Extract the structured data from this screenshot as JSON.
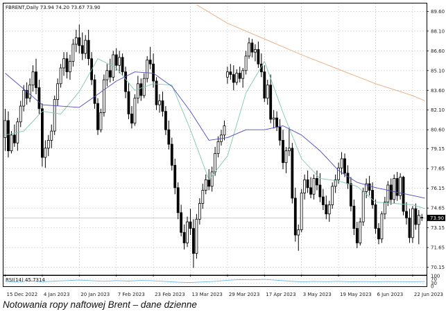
{
  "caption": "Notowania ropy naftowej Brent – dane dzienne",
  "chart_data": {
    "type": "candlestick",
    "symbol_header": "FBRENT,Daily  73.94 74.20 73.67 73.90",
    "last_price_label": "73.90",
    "last_price": 73.9,
    "y_ticks": [
      "89.60",
      "88.10",
      "86.60",
      "85.10",
      "83.60",
      "82.10",
      "80.60",
      "79.15",
      "77.65",
      "76.15",
      "74.65",
      "73.15",
      "71.65",
      "70.15"
    ],
    "ylim": [
      69.6,
      90.2
    ],
    "x_ticks": [
      "15 Dec 2022",
      "4 Jan 2023",
      "20 Jan 2023",
      "7 Feb 2023",
      "23 Feb 2023",
      "13 Mar 2023",
      "29 Mar 2023",
      "17 Apr 2023",
      "3 May 2023",
      "19 May 2023",
      "6 Jun 2023",
      "22 Jun 2023"
    ],
    "x_tick_index": [
      0,
      12,
      24,
      36,
      48,
      60,
      72,
      84,
      96,
      108,
      120,
      132
    ],
    "grid": true,
    "colors": {
      "bull": "#ffffff",
      "bear": "#000000",
      "wick": "#000000",
      "ma_fast": "#7ec9a8",
      "ma_slow": "#4b4bc8",
      "ma_long": "#e8a87c",
      "rsi": "#6fb6e8",
      "grid": "#c8c8c8"
    },
    "ohlc": [
      [
        80.0,
        82.2,
        79.0,
        81.3
      ],
      [
        81.3,
        82.0,
        78.5,
        79.0
      ],
      [
        79.0,
        80.5,
        78.8,
        80.2
      ],
      [
        80.2,
        81.0,
        79.3,
        79.6
      ],
      [
        79.6,
        81.5,
        79.0,
        81.2
      ],
      [
        81.2,
        82.8,
        80.8,
        82.4
      ],
      [
        82.4,
        84.0,
        82.0,
        83.6
      ],
      [
        83.6,
        84.2,
        82.5,
        83.0
      ],
      [
        83.0,
        84.5,
        82.7,
        84.0
      ],
      [
        84.0,
        85.5,
        83.5,
        85.0
      ],
      [
        85.0,
        86.0,
        83.3,
        83.8
      ],
      [
        83.8,
        84.4,
        81.8,
        82.2
      ],
      [
        82.2,
        82.6,
        77.8,
        78.5
      ],
      [
        78.5,
        79.8,
        77.7,
        79.2
      ],
      [
        79.2,
        80.2,
        78.6,
        79.8
      ],
      [
        79.8,
        81.0,
        79.2,
        80.5
      ],
      [
        80.5,
        83.2,
        80.2,
        82.9
      ],
      [
        82.9,
        84.5,
        82.4,
        84.1
      ],
      [
        84.1,
        85.6,
        83.8,
        85.3
      ],
      [
        85.3,
        86.5,
        84.7,
        86.0
      ],
      [
        86.0,
        86.5,
        84.5,
        85.0
      ],
      [
        85.0,
        86.3,
        84.4,
        85.8
      ],
      [
        85.8,
        87.5,
        85.4,
        87.1
      ],
      [
        87.1,
        88.2,
        86.5,
        87.6
      ],
      [
        87.6,
        88.6,
        86.4,
        87.0
      ],
      [
        87.0,
        88.0,
        85.9,
        86.4
      ],
      [
        86.4,
        87.8,
        86.0,
        87.4
      ],
      [
        87.4,
        88.2,
        85.5,
        86.0
      ],
      [
        86.0,
        86.5,
        84.0,
        84.4
      ],
      [
        84.4,
        84.8,
        82.2,
        82.6
      ],
      [
        82.6,
        83.0,
        80.2,
        80.6
      ],
      [
        80.6,
        82.2,
        80.4,
        81.9
      ],
      [
        81.9,
        84.8,
        81.6,
        84.4
      ],
      [
        84.4,
        85.6,
        83.9,
        85.1
      ],
      [
        85.1,
        86.0,
        84.2,
        84.6
      ],
      [
        84.6,
        86.6,
        84.3,
        86.3
      ],
      [
        86.3,
        86.8,
        85.1,
        85.5
      ],
      [
        85.5,
        86.6,
        84.9,
        86.1
      ],
      [
        86.1,
        86.4,
        84.7,
        85.0
      ],
      [
        85.0,
        85.4,
        83.0,
        83.5
      ],
      [
        83.5,
        84.2,
        81.4,
        81.8
      ],
      [
        81.8,
        82.4,
        80.7,
        81.1
      ],
      [
        81.1,
        83.3,
        80.9,
        83.0
      ],
      [
        83.0,
        84.7,
        82.6,
        84.1
      ],
      [
        84.1,
        84.5,
        82.8,
        83.2
      ],
      [
        83.2,
        84.9,
        83.0,
        84.5
      ],
      [
        84.5,
        86.2,
        84.2,
        85.9
      ],
      [
        85.9,
        86.9,
        85.2,
        85.6
      ],
      [
        85.6,
        86.4,
        83.8,
        84.3
      ],
      [
        84.3,
        84.6,
        82.1,
        82.5
      ],
      [
        82.5,
        83.3,
        81.9,
        82.8
      ],
      [
        82.8,
        83.5,
        81.6,
        82.0
      ],
      [
        82.0,
        82.4,
        80.2,
        80.6
      ],
      [
        80.6,
        81.3,
        79.1,
        79.5
      ],
      [
        79.5,
        80.0,
        77.5,
        77.9
      ],
      [
        77.9,
        78.4,
        75.7,
        76.2
      ],
      [
        76.2,
        76.6,
        73.8,
        74.3
      ],
      [
        74.3,
        74.9,
        72.5,
        72.8
      ],
      [
        72.8,
        73.4,
        71.5,
        72.0
      ],
      [
        72.0,
        74.0,
        71.7,
        73.6
      ],
      [
        73.6,
        74.6,
        72.6,
        73.1
      ],
      [
        73.1,
        73.8,
        70.1,
        71.2
      ],
      [
        71.2,
        74.2,
        70.8,
        73.8
      ],
      [
        73.8,
        75.4,
        73.4,
        75.0
      ],
      [
        75.0,
        76.5,
        74.6,
        76.0
      ],
      [
        76.0,
        77.2,
        75.7,
        76.8
      ],
      [
        76.8,
        77.6,
        76.0,
        76.3
      ],
      [
        76.3,
        77.8,
        75.9,
        77.4
      ],
      [
        77.4,
        79.3,
        77.1,
        78.8
      ],
      [
        78.8,
        80.1,
        78.5,
        79.7
      ],
      [
        79.7,
        80.6,
        79.4,
        80.2
      ],
      [
        80.2,
        81.3,
        79.8,
        80.9
      ],
      [
        84.6,
        85.4,
        84.1,
        85.0
      ],
      [
        85.0,
        85.6,
        84.4,
        84.8
      ],
      [
        84.8,
        85.5,
        83.6,
        84.2
      ],
      [
        84.2,
        85.2,
        84.0,
        84.9
      ],
      [
        84.9,
        85.4,
        84.2,
        84.5
      ],
      [
        84.5,
        85.3,
        83.8,
        85.1
      ],
      [
        85.1,
        86.6,
        84.8,
        86.2
      ],
      [
        86.2,
        87.6,
        86.0,
        87.2
      ],
      [
        87.2,
        87.5,
        86.1,
        86.5
      ],
      [
        86.5,
        87.1,
        85.8,
        86.7
      ],
      [
        86.7,
        87.3,
        85.3,
        85.6
      ],
      [
        85.6,
        86.4,
        84.6,
        85.0
      ],
      [
        85.0,
        85.5,
        82.7,
        83.0
      ],
      [
        83.0,
        84.4,
        82.5,
        84.0
      ],
      [
        84.0,
        84.8,
        81.1,
        81.4
      ],
      [
        81.4,
        82.1,
        80.7,
        81.5
      ],
      [
        81.5,
        82.0,
        80.5,
        80.8
      ],
      [
        80.8,
        81.4,
        79.4,
        79.8
      ],
      [
        79.8,
        80.6,
        77.6,
        78.1
      ],
      [
        78.1,
        79.3,
        77.3,
        79.0
      ],
      [
        79.0,
        80.8,
        78.6,
        79.2
      ],
      [
        79.2,
        79.6,
        75.0,
        75.4
      ],
      [
        75.4,
        76.2,
        72.1,
        72.6
      ],
      [
        72.6,
        73.4,
        71.4,
        73.0
      ],
      [
        73.0,
        76.1,
        72.8,
        75.8
      ],
      [
        75.8,
        77.2,
        75.3,
        76.8
      ],
      [
        76.8,
        77.5,
        75.8,
        76.2
      ],
      [
        76.2,
        77.0,
        75.4,
        75.7
      ],
      [
        75.7,
        77.2,
        75.3,
        76.9
      ],
      [
        76.9,
        77.5,
        76.0,
        76.4
      ],
      [
        76.4,
        77.3,
        75.1,
        75.5
      ],
      [
        75.5,
        76.1,
        74.5,
        74.9
      ],
      [
        74.9,
        75.6,
        73.8,
        74.2
      ],
      [
        74.2,
        75.2,
        73.6,
        74.9
      ],
      [
        74.9,
        76.6,
        74.6,
        76.3
      ],
      [
        76.3,
        77.2,
        75.8,
        76.8
      ],
      [
        76.8,
        78.1,
        76.5,
        77.7
      ],
      [
        77.7,
        78.9,
        77.2,
        78.4
      ],
      [
        78.4,
        78.8,
        77.0,
        77.3
      ],
      [
        77.3,
        77.9,
        76.1,
        76.5
      ],
      [
        76.5,
        77.0,
        74.4,
        74.8
      ],
      [
        74.8,
        75.3,
        72.6,
        73.1
      ],
      [
        73.1,
        73.6,
        71.6,
        72.0
      ],
      [
        72.0,
        73.9,
        71.8,
        73.6
      ],
      [
        73.6,
        76.2,
        73.3,
        75.9
      ],
      [
        75.9,
        76.9,
        75.4,
        76.5
      ],
      [
        76.5,
        77.1,
        75.6,
        76.0
      ],
      [
        76.0,
        76.6,
        74.6,
        74.9
      ],
      [
        74.9,
        75.3,
        72.7,
        73.1
      ],
      [
        73.1,
        73.5,
        71.9,
        72.3
      ],
      [
        72.3,
        74.4,
        72.0,
        74.2
      ],
      [
        74.2,
        75.5,
        73.8,
        75.1
      ],
      [
        75.1,
        76.7,
        74.8,
        76.4
      ],
      [
        76.4,
        76.9,
        74.9,
        75.3
      ],
      [
        75.3,
        77.2,
        75.0,
        76.9
      ],
      [
        76.9,
        77.4,
        75.2,
        75.6
      ],
      [
        75.6,
        77.3,
        75.3,
        77.0
      ],
      [
        77.0,
        77.1,
        74.1,
        74.4
      ],
      [
        74.4,
        75.1,
        73.4,
        73.9
      ],
      [
        73.9,
        74.6,
        72.0,
        72.4
      ],
      [
        72.4,
        74.8,
        72.0,
        74.6
      ],
      [
        74.6,
        75.0,
        73.0,
        73.4
      ],
      [
        73.4,
        74.5,
        71.9,
        74.1
      ],
      [
        73.94,
        74.2,
        73.67,
        73.9
      ]
    ],
    "ma_fast": [
      [
        0,
        80.2
      ],
      [
        6,
        80.5
      ],
      [
        12,
        82.0
      ],
      [
        18,
        81.8
      ],
      [
        24,
        83.5
      ],
      [
        30,
        86.0
      ],
      [
        36,
        85.3
      ],
      [
        42,
        83.6
      ],
      [
        48,
        84.1
      ],
      [
        54,
        84.0
      ],
      [
        60,
        80.6
      ],
      [
        66,
        76.8
      ],
      [
        72,
        78.6
      ],
      [
        78,
        83.4
      ],
      [
        84,
        85.8
      ],
      [
        90,
        81.9
      ],
      [
        96,
        78.4
      ],
      [
        102,
        76.9
      ],
      [
        108,
        76.7
      ],
      [
        114,
        76.3
      ],
      [
        120,
        75.1
      ],
      [
        126,
        75.0
      ],
      [
        132,
        74.9
      ],
      [
        136,
        74.6
      ]
    ],
    "ma_slow": [
      [
        0,
        84.9
      ],
      [
        12,
        82.5
      ],
      [
        24,
        82.3
      ],
      [
        30,
        83.3
      ],
      [
        36,
        84.3
      ],
      [
        42,
        85.0
      ],
      [
        48,
        84.9
      ],
      [
        54,
        83.9
      ],
      [
        60,
        82.0
      ],
      [
        66,
        79.8
      ],
      [
        72,
        80.0
      ],
      [
        78,
        80.6
      ],
      [
        84,
        80.6
      ],
      [
        90,
        80.9
      ],
      [
        96,
        80.2
      ],
      [
        102,
        79.0
      ],
      [
        108,
        77.5
      ],
      [
        114,
        76.6
      ],
      [
        120,
        76.2
      ],
      [
        126,
        75.9
      ],
      [
        132,
        75.6
      ],
      [
        136,
        75.4
      ]
    ],
    "ma_long": [
      [
        62,
        90.1
      ],
      [
        72,
        88.7
      ],
      [
        84,
        87.5
      ],
      [
        96,
        86.3
      ],
      [
        108,
        85.2
      ],
      [
        120,
        84.1
      ],
      [
        132,
        83.2
      ],
      [
        136,
        82.8
      ]
    ],
    "rsi_panel": {
      "label": "RSI(14) 45.7314",
      "y_ticks": [
        "100",
        "70",
        "30",
        "0"
      ],
      "ylim": [
        0,
        100
      ],
      "values": [
        [
          0,
          46
        ],
        [
          4,
          41
        ],
        [
          8,
          52
        ],
        [
          12,
          43
        ],
        [
          16,
          50
        ],
        [
          20,
          55
        ],
        [
          24,
          60
        ],
        [
          28,
          54
        ],
        [
          32,
          48
        ],
        [
          36,
          55
        ],
        [
          40,
          50
        ],
        [
          44,
          56
        ],
        [
          48,
          53
        ],
        [
          52,
          46
        ],
        [
          56,
          39
        ],
        [
          60,
          36
        ],
        [
          64,
          42
        ],
        [
          68,
          47
        ],
        [
          72,
          58
        ],
        [
          76,
          64
        ],
        [
          80,
          62
        ],
        [
          84,
          66
        ],
        [
          88,
          58
        ],
        [
          92,
          50
        ],
        [
          96,
          42
        ],
        [
          100,
          47
        ],
        [
          104,
          45
        ],
        [
          108,
          48
        ],
        [
          112,
          44
        ],
        [
          116,
          46
        ],
        [
          120,
          43
        ],
        [
          124,
          46
        ],
        [
          128,
          45
        ],
        [
          132,
          44
        ],
        [
          136,
          45.7
        ]
      ]
    }
  }
}
